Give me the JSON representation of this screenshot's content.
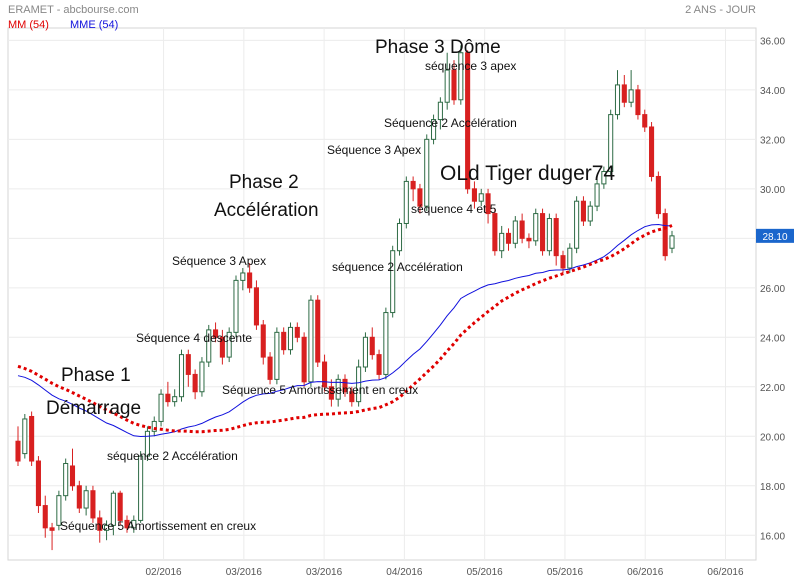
{
  "header": {
    "title": "ERAMET - abcbourse.com",
    "period": "2 ANS - JOUR"
  },
  "legend": [
    {
      "name": "MM (54)",
      "color": "#e00000"
    },
    {
      "name": "MME (54)",
      "color": "#1010dd"
    }
  ],
  "colors": {
    "up": "#2e6b45",
    "down": "#d82020",
    "price_label_bg": "#1a66cc"
  },
  "chart_data": {
    "type": "candlestick",
    "ylim": [
      15,
      36.5
    ],
    "xlim": [
      0,
      74
    ],
    "yticks": [
      "16.00",
      "18.00",
      "20.00",
      "22.00",
      "24.00",
      "26.00",
      "28.00",
      "30.00",
      "32.00",
      "34.00",
      "36.00"
    ],
    "xticks": [
      {
        "x": 8,
        "label": "02/2016"
      },
      {
        "x": 16.5,
        "label": "03/2016"
      },
      {
        "x": 25,
        "label": "03/2016"
      },
      {
        "x": 33.5,
        "label": "04/2016"
      },
      {
        "x": 42,
        "label": "05/2016"
      },
      {
        "x": 50.5,
        "label": "05/2016"
      },
      {
        "x": 59,
        "label": "06/2016"
      },
      {
        "x": 67.5,
        "label": "06/2016"
      }
    ],
    "last_price": "28.10",
    "last_price_value": 28.1,
    "candles": [
      [
        19.8,
        19.0,
        20.4,
        18.8
      ],
      [
        19.3,
        20.7,
        20.9,
        19.1
      ],
      [
        20.8,
        19.0,
        21.0,
        18.8
      ],
      [
        19.0,
        17.2,
        19.2,
        16.9
      ],
      [
        17.2,
        16.3,
        17.6,
        15.9
      ],
      [
        16.3,
        16.2,
        16.5,
        15.4
      ],
      [
        16.4,
        17.6,
        17.8,
        16.2
      ],
      [
        17.6,
        18.9,
        19.1,
        17.4
      ],
      [
        18.8,
        18.0,
        19.5,
        17.8
      ],
      [
        18.0,
        17.1,
        18.2,
        16.9
      ],
      [
        17.1,
        17.8,
        18.0,
        16.8
      ],
      [
        17.8,
        16.7,
        18.0,
        16.5
      ],
      [
        16.7,
        16.2,
        17.0,
        15.7
      ],
      [
        16.2,
        16.4,
        16.6,
        15.8
      ],
      [
        16.4,
        17.7,
        17.8,
        16.0
      ],
      [
        17.7,
        16.6,
        17.8,
        16.4
      ],
      [
        16.6,
        16.3,
        16.8,
        16.1
      ],
      [
        16.3,
        16.6,
        16.8,
        16.1
      ],
      [
        16.6,
        19.2,
        19.4,
        16.5
      ],
      [
        19.2,
        20.2,
        20.4,
        19.0
      ],
      [
        20.2,
        20.6,
        20.8,
        20.0
      ],
      [
        20.6,
        21.7,
        21.9,
        20.4
      ],
      [
        21.7,
        21.4,
        22.2,
        21.2
      ],
      [
        21.4,
        21.6,
        21.9,
        21.2
      ],
      [
        21.6,
        23.3,
        23.5,
        21.4
      ],
      [
        23.3,
        22.5,
        23.5,
        22.0
      ],
      [
        22.5,
        21.8,
        22.7,
        21.5
      ],
      [
        21.8,
        23.0,
        23.2,
        21.6
      ],
      [
        23.0,
        24.3,
        24.5,
        22.8
      ],
      [
        24.3,
        24.0,
        24.6,
        23.8
      ],
      [
        24.0,
        23.2,
        24.3,
        22.9
      ],
      [
        23.2,
        24.2,
        24.4,
        23.0
      ],
      [
        24.2,
        26.3,
        26.5,
        24.0
      ],
      [
        26.3,
        26.6,
        26.8,
        25.9
      ],
      [
        26.6,
        26.0,
        27.0,
        25.8
      ],
      [
        26.0,
        24.5,
        26.3,
        24.3
      ],
      [
        24.5,
        23.2,
        24.7,
        22.9
      ],
      [
        23.2,
        22.3,
        23.4,
        22.1
      ],
      [
        22.3,
        24.2,
        24.4,
        22.1
      ],
      [
        24.2,
        23.5,
        24.4,
        23.3
      ],
      [
        23.5,
        24.4,
        24.6,
        23.3
      ],
      [
        24.4,
        24.0,
        24.6,
        23.8
      ],
      [
        24.0,
        22.2,
        24.2,
        22.0
      ],
      [
        22.2,
        25.5,
        25.7,
        22.0
      ],
      [
        25.5,
        23.0,
        25.7,
        22.8
      ],
      [
        23.0,
        22.0,
        23.3,
        21.8
      ],
      [
        22.0,
        21.5,
        22.3,
        21.2
      ],
      [
        21.5,
        22.3,
        22.5,
        21.2
      ],
      [
        22.3,
        21.8,
        22.5,
        21.6
      ],
      [
        21.8,
        21.4,
        22.0,
        21.2
      ],
      [
        21.4,
        22.8,
        23.1,
        21.2
      ],
      [
        22.8,
        24.0,
        24.2,
        22.6
      ],
      [
        24.0,
        23.3,
        24.4,
        23.1
      ],
      [
        23.3,
        22.5,
        23.5,
        22.3
      ],
      [
        22.5,
        25.0,
        25.2,
        22.3
      ],
      [
        25.0,
        27.5,
        27.7,
        24.8
      ],
      [
        27.5,
        28.6,
        28.8,
        27.3
      ],
      [
        28.6,
        30.3,
        30.5,
        28.4
      ],
      [
        30.3,
        30.0,
        30.5,
        29.5
      ],
      [
        30.0,
        29.3,
        30.2,
        29.0
      ],
      [
        29.3,
        32.0,
        32.2,
        29.1
      ],
      [
        32.0,
        32.8,
        33.0,
        31.8
      ],
      [
        32.8,
        33.5,
        33.7,
        32.4
      ],
      [
        33.5,
        34.8,
        35.5,
        33.2
      ],
      [
        34.8,
        33.6,
        35.2,
        33.4
      ],
      [
        33.6,
        35.5,
        35.8,
        33.4
      ],
      [
        35.5,
        30.0,
        35.6,
        29.8
      ],
      [
        30.0,
        29.5,
        30.3,
        29.2
      ],
      [
        29.5,
        29.8,
        30.0,
        29.3
      ],
      [
        29.8,
        29.0,
        30.0,
        28.6
      ],
      [
        29.0,
        27.5,
        29.2,
        27.3
      ],
      [
        27.5,
        28.2,
        28.5,
        27.2
      ],
      [
        28.2,
        27.8,
        28.4,
        27.5
      ],
      [
        27.8,
        28.7,
        28.9,
        27.6
      ]
    ],
    "candles_b": [
      [
        28.7,
        28.0,
        29.0,
        27.8
      ],
      [
        28.0,
        27.9,
        28.2,
        27.6
      ],
      [
        27.9,
        29.0,
        29.2,
        27.7
      ],
      [
        29.0,
        27.5,
        29.2,
        27.3
      ],
      [
        27.5,
        28.8,
        29.0,
        27.3
      ],
      [
        28.8,
        27.3,
        29.0,
        26.9
      ],
      [
        27.3,
        26.8,
        27.5,
        26.6
      ],
      [
        26.8,
        27.6,
        27.8,
        26.6
      ],
      [
        27.6,
        29.5,
        29.7,
        27.4
      ],
      [
        29.5,
        28.7,
        29.7,
        28.5
      ],
      [
        28.7,
        29.3,
        29.5,
        28.5
      ],
      [
        29.3,
        30.2,
        30.4,
        29.1
      ],
      [
        30.2,
        30.7,
        30.9,
        30.0
      ],
      [
        30.7,
        33.0,
        33.2,
        30.5
      ],
      [
        33.0,
        34.2,
        34.8,
        32.8
      ],
      [
        34.2,
        33.5,
        34.6,
        33.3
      ],
      [
        33.5,
        34.0,
        34.8,
        33.3
      ],
      [
        34.0,
        33.0,
        34.2,
        32.8
      ],
      [
        33.0,
        32.5,
        33.2,
        32.3
      ],
      [
        32.5,
        30.5,
        32.7,
        30.3
      ],
      [
        30.5,
        29.0,
        30.7,
        28.8
      ],
      [
        29.0,
        27.3,
        29.2,
        27.1
      ],
      [
        27.6,
        28.1,
        28.3,
        27.4
      ]
    ]
  },
  "annotations": [
    {
      "text": "Phase 3 Dôme",
      "size": "l"
    },
    {
      "text": "séquence 3 apex",
      "size": "s"
    },
    {
      "text": "Séquence 2 Accélération",
      "size": "s"
    },
    {
      "text": "Séquence 3 Apex",
      "size": "s"
    },
    {
      "text": "OLd Tiger duger74",
      "size": "xl"
    },
    {
      "text": "Phase 2",
      "size": "l"
    },
    {
      "text": "Accélération",
      "size": "l"
    },
    {
      "text": "séquence 4 et 5",
      "size": "s"
    },
    {
      "text": "Séquence 3 Apex",
      "size": "s"
    },
    {
      "text": "séquence 2 Accélération",
      "size": "s"
    },
    {
      "text": "Séquence 4 descente",
      "size": "s"
    },
    {
      "text": "Phase 1",
      "size": "l"
    },
    {
      "text": "Séquence 5 Amortissement en creux",
      "size": "s"
    },
    {
      "text": "Démarrage",
      "size": "l"
    },
    {
      "text": "séquence 2 Accélération",
      "size": "s"
    },
    {
      "text": "Séquence 5 Amortissement en creux",
      "size": "s"
    }
  ]
}
